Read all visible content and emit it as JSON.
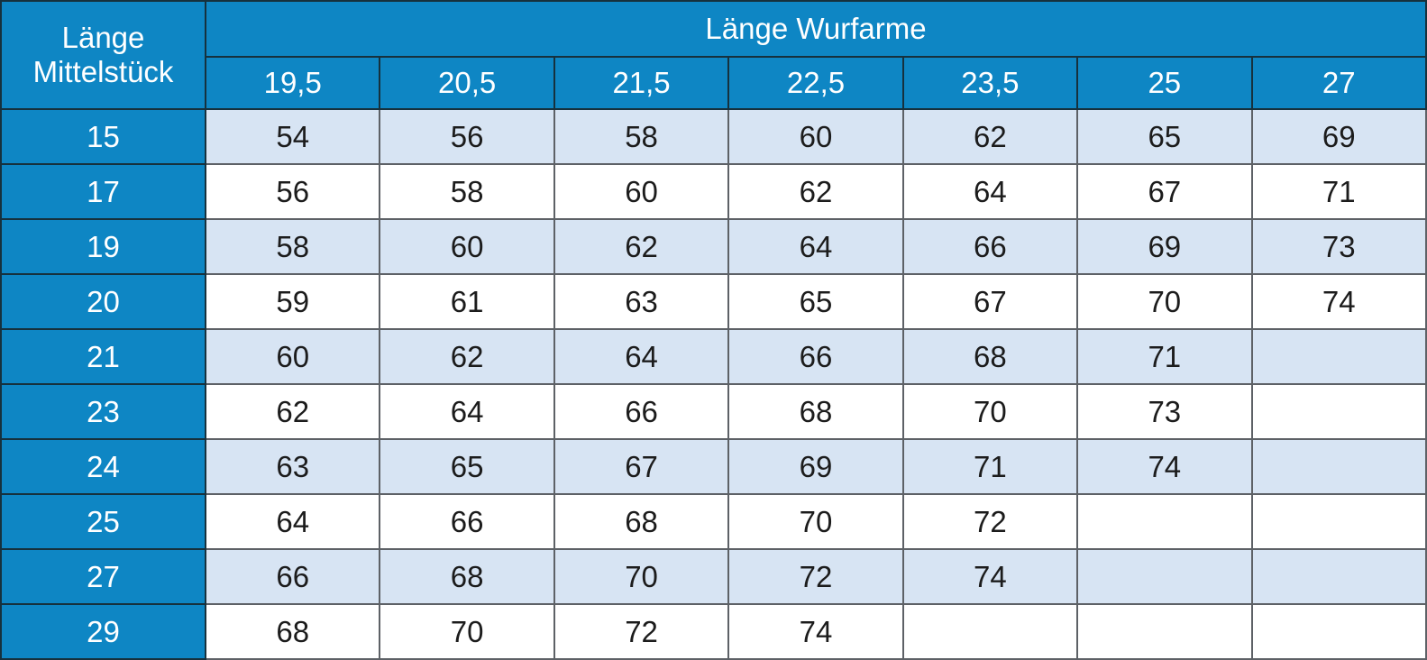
{
  "table": {
    "corner_header": "Länge Mittelstück",
    "group_header": "Länge Wurfarme",
    "columns": [
      "19,5",
      "20,5",
      "21,5",
      "22,5",
      "23,5",
      "25",
      "27"
    ],
    "rows": [
      {
        "label": "15",
        "values": [
          "54",
          "56",
          "58",
          "60",
          "62",
          "65",
          "69"
        ]
      },
      {
        "label": "17",
        "values": [
          "56",
          "58",
          "60",
          "62",
          "64",
          "67",
          "71"
        ]
      },
      {
        "label": "19",
        "values": [
          "58",
          "60",
          "62",
          "64",
          "66",
          "69",
          "73"
        ]
      },
      {
        "label": "20",
        "values": [
          "59",
          "61",
          "63",
          "65",
          "67",
          "70",
          "74"
        ]
      },
      {
        "label": "21",
        "values": [
          "60",
          "62",
          "64",
          "66",
          "68",
          "71",
          ""
        ]
      },
      {
        "label": "23",
        "values": [
          "62",
          "64",
          "66",
          "68",
          "70",
          "73",
          ""
        ]
      },
      {
        "label": "24",
        "values": [
          "63",
          "65",
          "67",
          "69",
          "71",
          "74",
          ""
        ]
      },
      {
        "label": "25",
        "values": [
          "64",
          "66",
          "68",
          "70",
          "72",
          "",
          ""
        ]
      },
      {
        "label": "27",
        "values": [
          "66",
          "68",
          "70",
          "72",
          "74",
          "",
          ""
        ]
      },
      {
        "label": "29",
        "values": [
          "68",
          "70",
          "72",
          "74",
          "",
          "",
          ""
        ]
      }
    ]
  },
  "colors": {
    "header_blue": "#0e86c4",
    "row_alt_blue": "#d7e4f3",
    "row_white": "#ffffff",
    "header_text": "#ffffff",
    "cell_text": "#1c1c1c",
    "grid_gray": "#5d6166",
    "grid_dark": "#16313d"
  },
  "chart_data": {
    "type": "table",
    "title": "Länge Wurfarme",
    "row_axis_label": "Länge Mittelstück",
    "columns": [
      19.5,
      20.5,
      21.5,
      22.5,
      23.5,
      25,
      27
    ],
    "rows": [
      15,
      17,
      19,
      20,
      21,
      23,
      24,
      25,
      27,
      29
    ],
    "values": [
      [
        54,
        56,
        58,
        60,
        62,
        65,
        69
      ],
      [
        56,
        58,
        60,
        62,
        64,
        67,
        71
      ],
      [
        58,
        60,
        62,
        64,
        66,
        69,
        73
      ],
      [
        59,
        61,
        63,
        65,
        67,
        70,
        74
      ],
      [
        60,
        62,
        64,
        66,
        68,
        71,
        null
      ],
      [
        62,
        64,
        66,
        68,
        70,
        73,
        null
      ],
      [
        63,
        65,
        67,
        69,
        71,
        74,
        null
      ],
      [
        64,
        66,
        68,
        70,
        72,
        null,
        null
      ],
      [
        66,
        68,
        70,
        72,
        74,
        null,
        null
      ],
      [
        68,
        70,
        72,
        74,
        null,
        null,
        null
      ]
    ],
    "layout": {
      "zebra_striping": true,
      "first_data_row_shaded": true,
      "grid": true
    }
  }
}
